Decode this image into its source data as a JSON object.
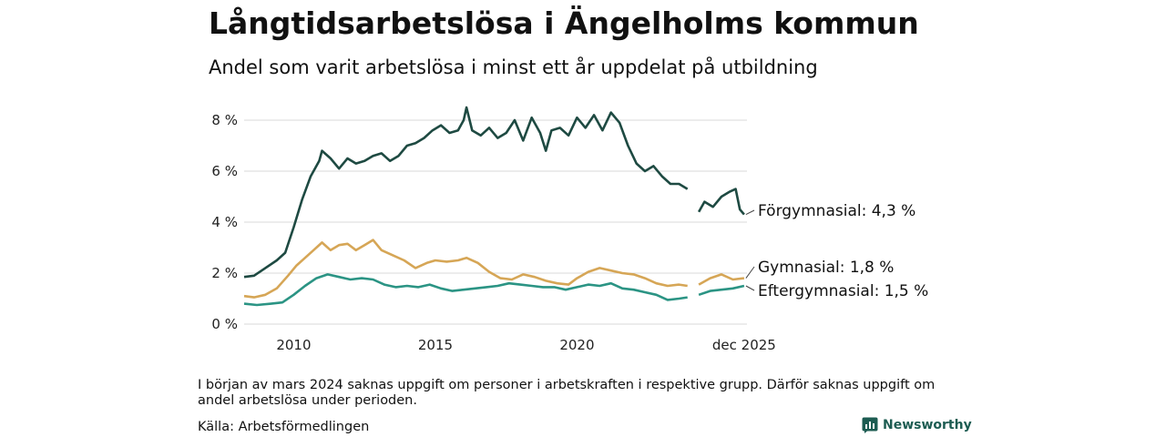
{
  "chart_data": {
    "type": "line",
    "title": "Långtidsarbetslösa i Ängelholms kommun",
    "subtitle": "Andel som varit arbetslösa i minst ett år uppdelat på utbildning",
    "y_ticks": [
      "0 %",
      "2 %",
      "4 %",
      "6 %",
      "8 %"
    ],
    "ylim": [
      0,
      9
    ],
    "xlim": [
      2008.25,
      2026.0
    ],
    "x_ticks": [
      {
        "value": 2010,
        "label": "2010"
      },
      {
        "value": 2015,
        "label": "2015"
      },
      {
        "value": 2020,
        "label": "2020"
      },
      {
        "value": 2025.9,
        "label": "dec 2025"
      }
    ],
    "gap": [
      2023.95,
      2024.25
    ],
    "series": [
      {
        "name": "Förgymnasial",
        "end_label": "Förgymnasial: 4,3 %",
        "color": "#1e4a42",
        "points": [
          [
            2008.25,
            1.85
          ],
          [
            2008.6,
            1.9
          ],
          [
            2009.0,
            2.2
          ],
          [
            2009.4,
            2.5
          ],
          [
            2009.7,
            2.8
          ],
          [
            2010.0,
            3.8
          ],
          [
            2010.3,
            4.9
          ],
          [
            2010.6,
            5.8
          ],
          [
            2010.9,
            6.4
          ],
          [
            2011.0,
            6.8
          ],
          [
            2011.3,
            6.5
          ],
          [
            2011.6,
            6.1
          ],
          [
            2011.9,
            6.5
          ],
          [
            2012.2,
            6.3
          ],
          [
            2012.5,
            6.4
          ],
          [
            2012.8,
            6.6
          ],
          [
            2013.1,
            6.7
          ],
          [
            2013.4,
            6.4
          ],
          [
            2013.7,
            6.6
          ],
          [
            2014.0,
            7.0
          ],
          [
            2014.3,
            7.1
          ],
          [
            2014.6,
            7.3
          ],
          [
            2014.9,
            7.6
          ],
          [
            2015.2,
            7.8
          ],
          [
            2015.5,
            7.5
          ],
          [
            2015.8,
            7.6
          ],
          [
            2016.0,
            8.0
          ],
          [
            2016.1,
            8.5
          ],
          [
            2016.3,
            7.6
          ],
          [
            2016.6,
            7.4
          ],
          [
            2016.9,
            7.7
          ],
          [
            2017.2,
            7.3
          ],
          [
            2017.5,
            7.5
          ],
          [
            2017.8,
            8.0
          ],
          [
            2018.1,
            7.2
          ],
          [
            2018.4,
            8.1
          ],
          [
            2018.7,
            7.5
          ],
          [
            2018.9,
            6.8
          ],
          [
            2019.1,
            7.6
          ],
          [
            2019.4,
            7.7
          ],
          [
            2019.7,
            7.4
          ],
          [
            2020.0,
            8.1
          ],
          [
            2020.3,
            7.7
          ],
          [
            2020.6,
            8.2
          ],
          [
            2020.9,
            7.6
          ],
          [
            2021.2,
            8.3
          ],
          [
            2021.5,
            7.9
          ],
          [
            2021.8,
            7.0
          ],
          [
            2022.1,
            6.3
          ],
          [
            2022.4,
            6.0
          ],
          [
            2022.7,
            6.2
          ],
          [
            2023.0,
            5.8
          ],
          [
            2023.3,
            5.5
          ],
          [
            2023.6,
            5.5
          ],
          [
            2023.9,
            5.3
          ],
          [
            2024.3,
            4.4
          ],
          [
            2024.5,
            4.8
          ],
          [
            2024.8,
            4.6
          ],
          [
            2025.1,
            5.0
          ],
          [
            2025.4,
            5.2
          ],
          [
            2025.6,
            5.3
          ],
          [
            2025.75,
            4.5
          ],
          [
            2025.9,
            4.3
          ]
        ]
      },
      {
        "name": "Gymnasial",
        "end_label": "Gymnasial: 1,8 %",
        "color": "#d6a656",
        "points": [
          [
            2008.25,
            1.1
          ],
          [
            2008.6,
            1.05
          ],
          [
            2009.0,
            1.15
          ],
          [
            2009.4,
            1.4
          ],
          [
            2009.8,
            1.9
          ],
          [
            2010.1,
            2.3
          ],
          [
            2010.4,
            2.6
          ],
          [
            2010.7,
            2.9
          ],
          [
            2011.0,
            3.2
          ],
          [
            2011.3,
            2.9
          ],
          [
            2011.6,
            3.1
          ],
          [
            2011.9,
            3.15
          ],
          [
            2012.2,
            2.9
          ],
          [
            2012.5,
            3.1
          ],
          [
            2012.8,
            3.3
          ],
          [
            2013.1,
            2.9
          ],
          [
            2013.5,
            2.7
          ],
          [
            2013.9,
            2.5
          ],
          [
            2014.3,
            2.2
          ],
          [
            2014.7,
            2.4
          ],
          [
            2015.0,
            2.5
          ],
          [
            2015.4,
            2.45
          ],
          [
            2015.8,
            2.5
          ],
          [
            2016.1,
            2.6
          ],
          [
            2016.5,
            2.4
          ],
          [
            2016.9,
            2.05
          ],
          [
            2017.3,
            1.8
          ],
          [
            2017.7,
            1.75
          ],
          [
            2018.1,
            1.95
          ],
          [
            2018.5,
            1.85
          ],
          [
            2018.9,
            1.7
          ],
          [
            2019.3,
            1.6
          ],
          [
            2019.7,
            1.55
          ],
          [
            2020.0,
            1.8
          ],
          [
            2020.4,
            2.05
          ],
          [
            2020.8,
            2.2
          ],
          [
            2021.2,
            2.1
          ],
          [
            2021.6,
            2.0
          ],
          [
            2022.0,
            1.95
          ],
          [
            2022.4,
            1.8
          ],
          [
            2022.8,
            1.6
          ],
          [
            2023.2,
            1.5
          ],
          [
            2023.6,
            1.55
          ],
          [
            2023.9,
            1.5
          ],
          [
            2024.3,
            1.55
          ],
          [
            2024.7,
            1.8
          ],
          [
            2025.1,
            1.95
          ],
          [
            2025.5,
            1.75
          ],
          [
            2025.9,
            1.8
          ]
        ]
      },
      {
        "name": "Eftergymnasial",
        "end_label": "Eftergymnasial: 1,5 %",
        "color": "#2b9484",
        "points": [
          [
            2008.25,
            0.8
          ],
          [
            2008.7,
            0.75
          ],
          [
            2009.2,
            0.8
          ],
          [
            2009.6,
            0.85
          ],
          [
            2010.0,
            1.15
          ],
          [
            2010.4,
            1.5
          ],
          [
            2010.8,
            1.8
          ],
          [
            2011.2,
            1.95
          ],
          [
            2011.6,
            1.85
          ],
          [
            2012.0,
            1.75
          ],
          [
            2012.4,
            1.8
          ],
          [
            2012.8,
            1.75
          ],
          [
            2013.2,
            1.55
          ],
          [
            2013.6,
            1.45
          ],
          [
            2014.0,
            1.5
          ],
          [
            2014.4,
            1.45
          ],
          [
            2014.8,
            1.55
          ],
          [
            2015.2,
            1.4
          ],
          [
            2015.6,
            1.3
          ],
          [
            2016.0,
            1.35
          ],
          [
            2016.4,
            1.4
          ],
          [
            2016.8,
            1.45
          ],
          [
            2017.2,
            1.5
          ],
          [
            2017.6,
            1.6
          ],
          [
            2018.0,
            1.55
          ],
          [
            2018.4,
            1.5
          ],
          [
            2018.8,
            1.45
          ],
          [
            2019.2,
            1.45
          ],
          [
            2019.6,
            1.35
          ],
          [
            2020.0,
            1.45
          ],
          [
            2020.4,
            1.55
          ],
          [
            2020.8,
            1.5
          ],
          [
            2021.2,
            1.6
          ],
          [
            2021.6,
            1.4
          ],
          [
            2022.0,
            1.35
          ],
          [
            2022.4,
            1.25
          ],
          [
            2022.8,
            1.15
          ],
          [
            2023.2,
            0.95
          ],
          [
            2023.6,
            1.0
          ],
          [
            2023.9,
            1.05
          ],
          [
            2024.3,
            1.15
          ],
          [
            2024.7,
            1.3
          ],
          [
            2025.1,
            1.35
          ],
          [
            2025.5,
            1.4
          ],
          [
            2025.9,
            1.5
          ]
        ]
      }
    ]
  },
  "note": "I början av mars 2024 saknas uppgift om personer i arbetskraften i respektive grupp. Därför saknas uppgift om andel arbetslösa under perioden.",
  "source": "Källa: Arbetsförmedlingen",
  "brand": "Newsworthy",
  "brand_color": "#1d5c52"
}
